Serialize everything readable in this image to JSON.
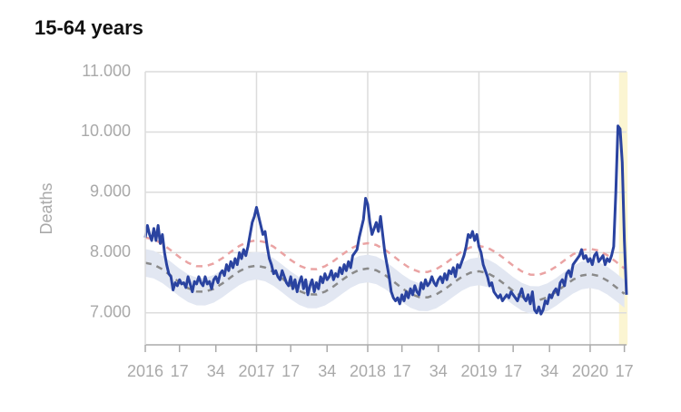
{
  "chart_data": {
    "type": "line",
    "title": "15-64 years",
    "ylabel": "Deaths",
    "xlim": [
      0,
      225
    ],
    "ylim": [
      6470,
      11000
    ],
    "yticks": [
      {
        "value": 7000,
        "label": "7.000"
      },
      {
        "value": 8000,
        "label": "8.000"
      },
      {
        "value": 9000,
        "label": "9.000"
      },
      {
        "value": 10000,
        "label": "10.000"
      },
      {
        "value": 11000,
        "label": "11.000"
      }
    ],
    "xticks": [
      {
        "value": 0,
        "label": "2016"
      },
      {
        "value": 16,
        "label": "17"
      },
      {
        "value": 33,
        "label": "34"
      },
      {
        "value": 52,
        "label": "2017"
      },
      {
        "value": 68,
        "label": "17"
      },
      {
        "value": 85,
        "label": "34"
      },
      {
        "value": 104,
        "label": "2018"
      },
      {
        "value": 120,
        "label": "17"
      },
      {
        "value": 137,
        "label": "34"
      },
      {
        "value": 156,
        "label": "2019"
      },
      {
        "value": 172,
        "label": "17"
      },
      {
        "value": 189,
        "label": "34"
      },
      {
        "value": 208,
        "label": "2020"
      },
      {
        "value": 224,
        "label": "17"
      }
    ],
    "grid": true,
    "highlight": {
      "from": 221.5,
      "to": 225.5,
      "color": "#fbf5d2"
    },
    "band": {
      "color": "#e2e7f2",
      "x": [
        0,
        4,
        8,
        12,
        16,
        20,
        24,
        28,
        32,
        36,
        40,
        44,
        48,
        52,
        56,
        60,
        64,
        68,
        72,
        76,
        80,
        84,
        88,
        92,
        96,
        100,
        104,
        108,
        112,
        116,
        120,
        124,
        128,
        132,
        136,
        140,
        144,
        148,
        152,
        156,
        160,
        164,
        168,
        172,
        176,
        180,
        184,
        188,
        192,
        196,
        200,
        204,
        208,
        212,
        216,
        220,
        224
      ],
      "lower": [
        7600,
        7570,
        7493,
        7387,
        7274,
        7180,
        7125,
        7122,
        7169,
        7256,
        7362,
        7461,
        7530,
        7553,
        7523,
        7447,
        7340,
        7227,
        7133,
        7078,
        7075,
        7122,
        7209,
        7315,
        7414,
        7484,
        7506,
        7476,
        7400,
        7293,
        7180,
        7086,
        7032,
        7028,
        7075,
        7162,
        7268,
        7367,
        7437,
        7460,
        7430,
        7353,
        7246,
        7134,
        7039,
        6985,
        6981,
        7029,
        7116,
        7221,
        7321,
        7390,
        7413,
        7383,
        7306,
        7200,
        7087
      ],
      "upper": [
        8060,
        8030,
        7953,
        7847,
        7734,
        7640,
        7585,
        7582,
        7629,
        7716,
        7822,
        7921,
        7990,
        8013,
        7983,
        7907,
        7800,
        7687,
        7593,
        7538,
        7535,
        7582,
        7669,
        7775,
        7874,
        7944,
        7966,
        7936,
        7860,
        7753,
        7640,
        7546,
        7492,
        7488,
        7535,
        7622,
        7728,
        7827,
        7897,
        7920,
        7890,
        7813,
        7706,
        7594,
        7499,
        7445,
        7441,
        7489,
        7576,
        7681,
        7781,
        7850,
        7873,
        7843,
        7766,
        7660,
        7547
      ]
    },
    "series": [
      {
        "color": "#eaa3a3",
        "dash": true,
        "width": 2.5,
        "x": [
          0,
          4,
          8,
          12,
          16,
          20,
          24,
          28,
          32,
          36,
          40,
          44,
          48,
          52,
          56,
          60,
          64,
          68,
          72,
          76,
          80,
          84,
          88,
          92,
          96,
          100,
          104,
          108,
          112,
          116,
          120,
          124,
          128,
          132,
          136,
          140,
          144,
          148,
          152,
          156,
          160,
          164,
          168,
          172,
          176,
          180,
          184,
          188,
          192,
          196,
          200,
          204,
          208,
          212,
          216,
          220,
          224
        ],
        "values": [
          8250,
          8220,
          8143,
          8037,
          7924,
          7830,
          7775,
          7772,
          7819,
          7906,
          8012,
          8111,
          8180,
          8203,
          8173,
          8097,
          7990,
          7877,
          7783,
          7728,
          7725,
          7772,
          7859,
          7965,
          8064,
          8134,
          8156,
          8126,
          8050,
          7943,
          7830,
          7736,
          7682,
          7678,
          7725,
          7812,
          7918,
          8017,
          8087,
          8110,
          8080,
          8003,
          7896,
          7784,
          7689,
          7635,
          7631,
          7679,
          7766,
          7871,
          7971,
          8040,
          8063,
          8033,
          7956,
          7850,
          7737
        ]
      },
      {
        "color": "#8a8a8a",
        "dash": true,
        "width": 2.5,
        "x": [
          0,
          4,
          8,
          12,
          16,
          20,
          24,
          28,
          32,
          36,
          40,
          44,
          48,
          52,
          56,
          60,
          64,
          68,
          72,
          76,
          80,
          84,
          88,
          92,
          96,
          100,
          104,
          108,
          112,
          116,
          120,
          124,
          128,
          132,
          136,
          140,
          144,
          148,
          152,
          156,
          160,
          164,
          168,
          172,
          176,
          180,
          184,
          188,
          192,
          196,
          200,
          204,
          208,
          212,
          216,
          220,
          224
        ],
        "values": [
          7830,
          7800,
          7723,
          7617,
          7504,
          7410,
          7355,
          7352,
          7399,
          7486,
          7592,
          7691,
          7760,
          7783,
          7753,
          7677,
          7570,
          7457,
          7363,
          7308,
          7305,
          7352,
          7439,
          7545,
          7644,
          7714,
          7736,
          7706,
          7630,
          7523,
          7410,
          7316,
          7262,
          7258,
          7305,
          7392,
          7498,
          7597,
          7667,
          7690,
          7660,
          7583,
          7476,
          7364,
          7269,
          7215,
          7211,
          7259,
          7346,
          7451,
          7551,
          7620,
          7643,
          7613,
          7536,
          7430,
          7317
        ]
      },
      {
        "color": "#2a43a0",
        "dash": false,
        "width": 3,
        "x": [
          0,
          1,
          2,
          3,
          4,
          5,
          6,
          7,
          8,
          9,
          10,
          11,
          12,
          13,
          14,
          15,
          16,
          17,
          18,
          19,
          20,
          21,
          22,
          23,
          24,
          25,
          26,
          27,
          28,
          29,
          30,
          31,
          32,
          33,
          34,
          35,
          36,
          37,
          38,
          39,
          40,
          41,
          42,
          43,
          44,
          45,
          46,
          47,
          48,
          49,
          50,
          51,
          52,
          53,
          54,
          55,
          56,
          57,
          58,
          59,
          60,
          61,
          62,
          63,
          64,
          65,
          66,
          67,
          68,
          69,
          70,
          71,
          72,
          73,
          74,
          75,
          76,
          77,
          78,
          79,
          80,
          81,
          82,
          83,
          84,
          85,
          86,
          87,
          88,
          89,
          90,
          91,
          92,
          93,
          94,
          95,
          96,
          97,
          98,
          99,
          100,
          101,
          102,
          103,
          104,
          105,
          106,
          107,
          108,
          109,
          110,
          111,
          112,
          113,
          114,
          115,
          116,
          117,
          118,
          119,
          120,
          121,
          122,
          123,
          124,
          125,
          126,
          127,
          128,
          129,
          130,
          131,
          132,
          133,
          134,
          135,
          136,
          137,
          138,
          139,
          140,
          141,
          142,
          143,
          144,
          145,
          146,
          147,
          148,
          149,
          150,
          151,
          152,
          153,
          154,
          155,
          156,
          157,
          158,
          159,
          160,
          161,
          162,
          163,
          164,
          165,
          166,
          167,
          168,
          169,
          170,
          171,
          172,
          173,
          174,
          175,
          176,
          177,
          178,
          179,
          180,
          181,
          182,
          183,
          184,
          185,
          186,
          187,
          188,
          189,
          190,
          191,
          192,
          193,
          194,
          195,
          196,
          197,
          198,
          199,
          200,
          201,
          202,
          203,
          204,
          205,
          206,
          207,
          208,
          209,
          210,
          211,
          212,
          213,
          214,
          215,
          216,
          217,
          218,
          219,
          220,
          221,
          222,
          223,
          224,
          225
        ],
        "values": [
          8250,
          8450,
          8300,
          8200,
          8400,
          8200,
          8450,
          8150,
          8300,
          8000,
          7800,
          7650,
          7600,
          7380,
          7500,
          7450,
          7550,
          7480,
          7500,
          7420,
          7600,
          7480,
          7350,
          7520,
          7480,
          7600,
          7500,
          7450,
          7600,
          7480,
          7520,
          7400,
          7550,
          7600,
          7500,
          7650,
          7700,
          7620,
          7800,
          7700,
          7850,
          7750,
          7900,
          7800,
          8000,
          7900,
          8050,
          7950,
          8100,
          8300,
          8500,
          8600,
          8750,
          8600,
          8450,
          8300,
          8350,
          8100,
          7900,
          7800,
          7650,
          7700,
          7600,
          7550,
          7700,
          7600,
          7500,
          7450,
          7600,
          7400,
          7550,
          7350,
          7500,
          7600,
          7400,
          7550,
          7300,
          7450,
          7550,
          7350,
          7500,
          7400,
          7600,
          7500,
          7650,
          7550,
          7600,
          7700,
          7550,
          7650,
          7600,
          7750,
          7650,
          7800,
          7700,
          7850,
          7750,
          7950,
          8000,
          8050,
          8250,
          8400,
          8550,
          8900,
          8800,
          8500,
          8300,
          8400,
          8500,
          8350,
          8600,
          8300,
          8000,
          7800,
          7600,
          7350,
          7250,
          7200,
          7250,
          7150,
          7300,
          7200,
          7350,
          7250,
          7400,
          7300,
          7450,
          7350,
          7300,
          7500,
          7400,
          7550,
          7450,
          7500,
          7600,
          7500,
          7450,
          7550,
          7600,
          7500,
          7650,
          7550,
          7700,
          7650,
          7750,
          7600,
          7800,
          7750,
          7850,
          7950,
          8100,
          8300,
          8250,
          8350,
          8200,
          8300,
          8100,
          8000,
          7800,
          7700,
          7600,
          7450,
          7500,
          7350,
          7300,
          7250,
          7300,
          7200,
          7250,
          7300,
          7250,
          7350,
          7300,
          7250,
          7200,
          7300,
          7400,
          7250,
          7200,
          7300,
          7150,
          7350,
          7050,
          7000,
          7100,
          6980,
          7050,
          7200,
          7150,
          7300,
          7250,
          7350,
          7400,
          7300,
          7500,
          7550,
          7450,
          7650,
          7700,
          7600,
          7800,
          7850,
          7900,
          7950,
          8050,
          7900,
          7950,
          7850,
          7900,
          7800,
          7950,
          8000,
          7850,
          7900,
          7950,
          7800,
          7900,
          7850,
          7950,
          8100,
          9000,
          10100,
          10050,
          9500,
          8200,
          7300
        ]
      }
    ]
  }
}
